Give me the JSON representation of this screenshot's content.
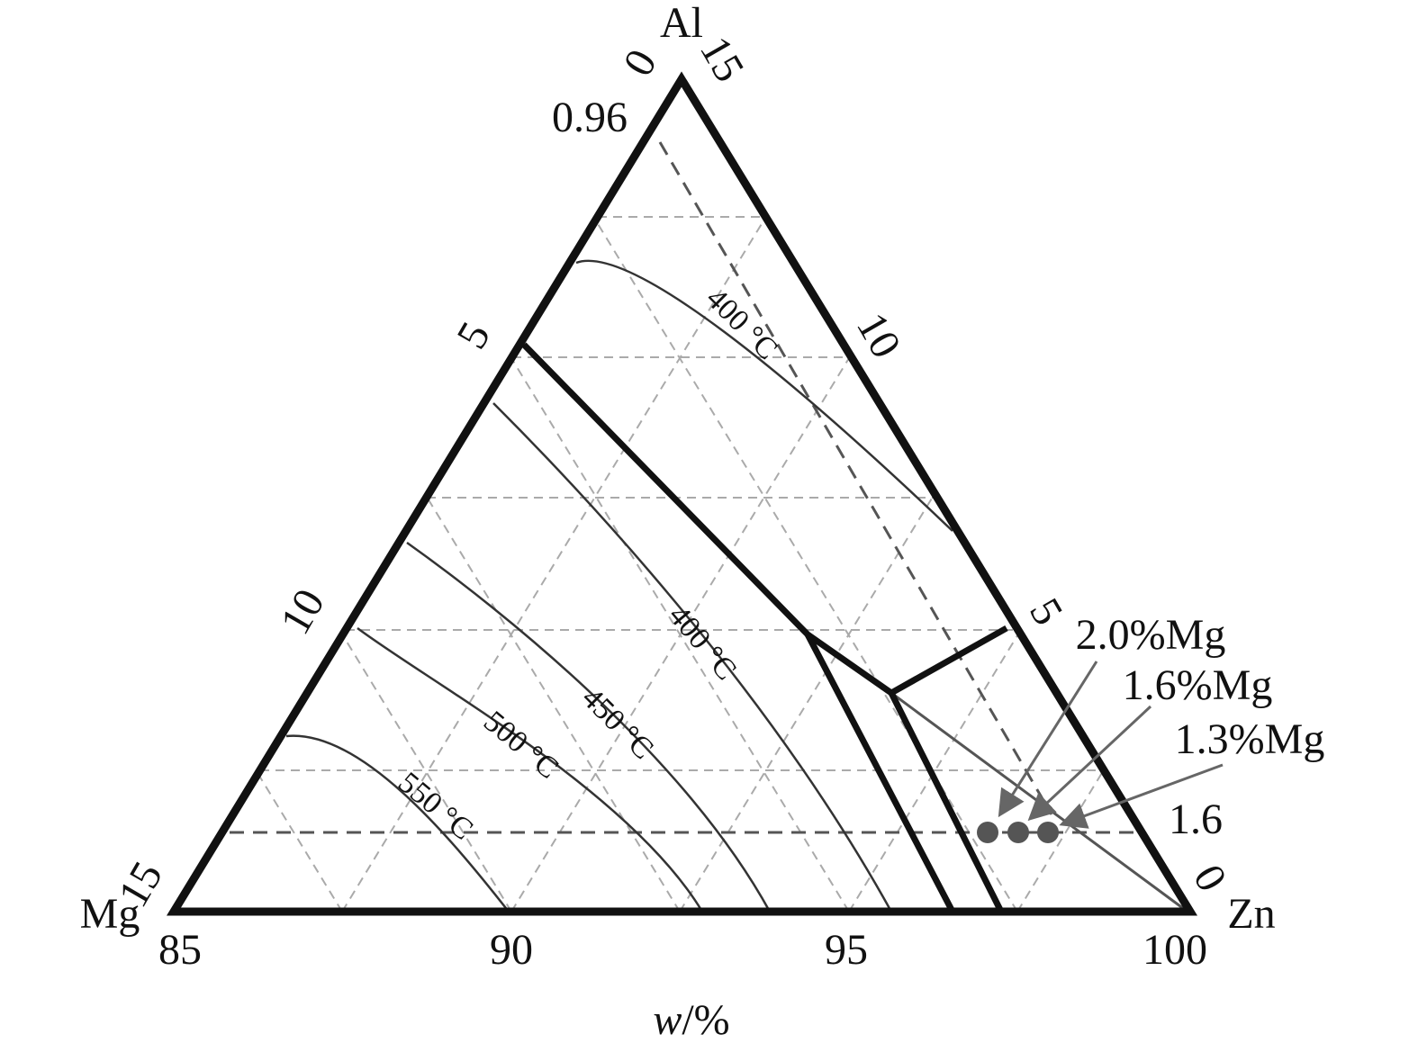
{
  "vertices": {
    "top": "Al",
    "left": "Mg",
    "right": "Zn"
  },
  "bottom_axis": {
    "ticks": [
      "85",
      "90",
      "95",
      "100"
    ],
    "label_italic": "w",
    "label_rest": "/%"
  },
  "left_axis": {
    "ticks": [
      "0",
      "5",
      "10",
      "15"
    ]
  },
  "right_axis": {
    "ticks": [
      "15",
      "10",
      "5",
      "0"
    ]
  },
  "annotations": [
    "0.96",
    "1.6"
  ],
  "isotherm_labels": [
    "400 °C",
    "400 °C",
    "450 °C",
    "500 °C",
    "550 °C"
  ],
  "points": [
    "2.0%Mg",
    "1.6%Mg",
    "1.3%Mg"
  ]
}
